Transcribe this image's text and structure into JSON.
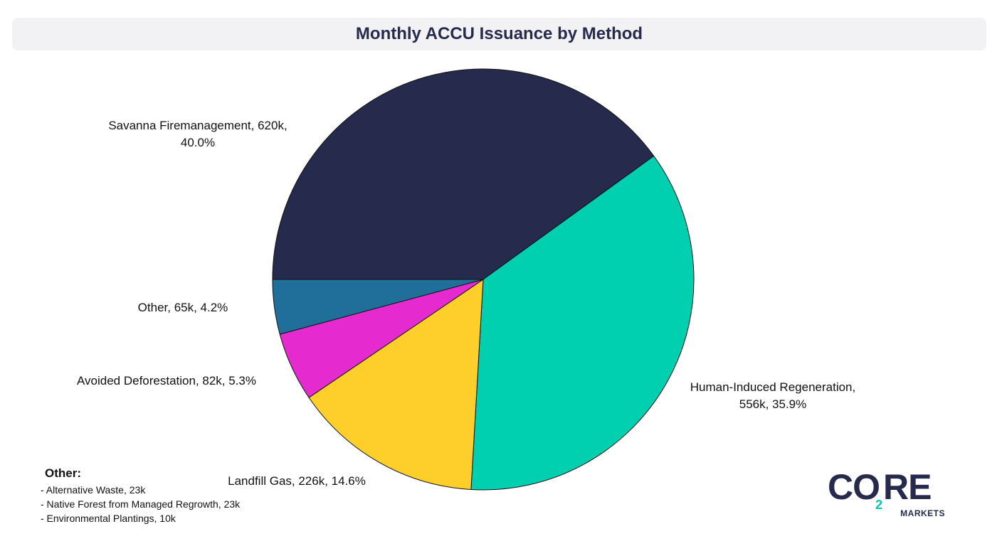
{
  "chart_data": {
    "type": "pie",
    "title": "Monthly ACCU Issuance by Method",
    "slices": [
      {
        "name": "Savanna Firemanagement",
        "value": 620,
        "value_label": "620k",
        "percent": 40.0,
        "color": "#262a4c",
        "label_line1": "Savanna Firemanagement, 620k,",
        "label_line2": "40.0%"
      },
      {
        "name": "Human-Induced Regeneration",
        "value": 556,
        "value_label": "556k",
        "percent": 35.9,
        "color": "#00cfb0",
        "label_line1": "Human-Induced Regeneration,",
        "label_line2": "556k, 35.9%"
      },
      {
        "name": "Landfill Gas",
        "value": 226,
        "value_label": "226k",
        "percent": 14.6,
        "color": "#fece2b",
        "label_line1": "Landfill Gas, 226k, 14.6%",
        "label_line2": ""
      },
      {
        "name": "Avoided Deforestation",
        "value": 82,
        "value_label": "82k",
        "percent": 5.3,
        "color": "#e52ad0",
        "label_line1": "Avoided Deforestation, 82k, 5.3%",
        "label_line2": ""
      },
      {
        "name": "Other",
        "value": 65,
        "value_label": "65k",
        "percent": 4.2,
        "color": "#1f6f9a",
        "label_line1": "Other, 65k, 4.2%",
        "label_line2": ""
      }
    ]
  },
  "other_breakdown": {
    "title": "Other:",
    "items": [
      "- Alternative Waste, 23k",
      "- Native Forest from Managed Regrowth, 23k",
      "- Environmental Plantings, 10k"
    ]
  },
  "logo": {
    "brand_left": "CO",
    "brand_sub": "2",
    "brand_right": "RE",
    "markets": "MARKETS",
    "primary_color": "#262a4c",
    "accent_color": "#00c9a7"
  }
}
